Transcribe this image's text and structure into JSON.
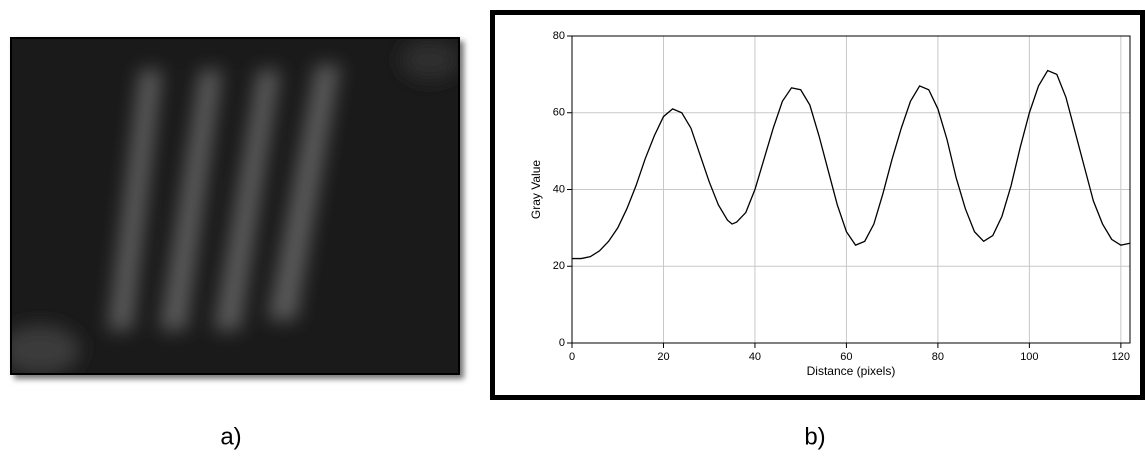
{
  "chart_data": {
    "type": "line",
    "x_label": "Distance (pixels)",
    "y_label": "Gray Value",
    "x": [
      0,
      2,
      4,
      6,
      8,
      10,
      12,
      14,
      16,
      18,
      20,
      22,
      24,
      26,
      28,
      30,
      32,
      34,
      35,
      36,
      38,
      40,
      42,
      44,
      46,
      48,
      50,
      52,
      54,
      56,
      58,
      60,
      62,
      64,
      66,
      68,
      70,
      72,
      74,
      76,
      78,
      80,
      82,
      84,
      86,
      88,
      90,
      92,
      94,
      96,
      98,
      100,
      102,
      104,
      106,
      108,
      110,
      112,
      114,
      116,
      118,
      120,
      122
    ],
    "series": [
      {
        "color": "#000000",
        "values": [
          22,
          22,
          22.5,
          24,
          26.5,
          30,
          35,
          41,
          48,
          54,
          59,
          61,
          60,
          56,
          49,
          42,
          36,
          32,
          31,
          31.5,
          34,
          40,
          48,
          56,
          63,
          66.5,
          66,
          62,
          54,
          45,
          36,
          29,
          25.5,
          26.5,
          31,
          39,
          48,
          56,
          63,
          67,
          66,
          61,
          53,
          43,
          35,
          29,
          26.5,
          28,
          33,
          41,
          51,
          60,
          67,
          71,
          70,
          64,
          55,
          46,
          37,
          31,
          27,
          25.5,
          26
        ]
      }
    ],
    "xlim": [
      0,
      122
    ],
    "ylim": [
      0,
      80
    ],
    "xticks": [
      0,
      20,
      40,
      60,
      80,
      100,
      120
    ],
    "yticks": [
      0,
      20,
      40,
      60,
      80
    ],
    "grid": true
  },
  "panel_labels": [
    "a)",
    "b)"
  ]
}
